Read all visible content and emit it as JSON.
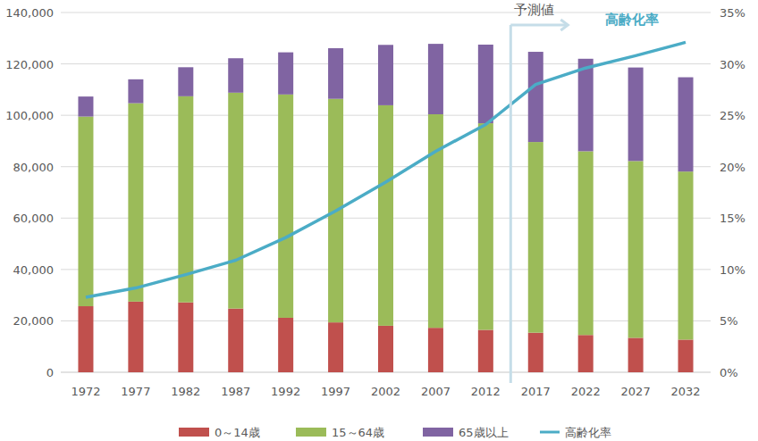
{
  "chart_data": {
    "type": "bar",
    "stacked": true,
    "grid": true,
    "legend": "bottom",
    "categories": [
      "1972",
      "1977",
      "1982",
      "1987",
      "1992",
      "1997",
      "2002",
      "2007",
      "2012",
      "2017",
      "2022",
      "2027",
      "2032"
    ],
    "series": [
      {
        "name": "0～14歳",
        "color": "#c0504d",
        "values": [
          25700,
          27500,
          27200,
          24800,
          21200,
          19400,
          18100,
          17300,
          16500,
          15400,
          14500,
          13400,
          12700
        ]
      },
      {
        "name": "15～64歳",
        "color": "#9bbb59",
        "values": [
          73800,
          77200,
          80200,
          84000,
          86900,
          87000,
          85800,
          83100,
          80400,
          74200,
          71500,
          68800,
          65400
        ]
      },
      {
        "name": "65歳以上",
        "color": "#8064a2",
        "values": [
          7800,
          9300,
          11300,
          13400,
          16400,
          19700,
          23500,
          27400,
          30600,
          35100,
          36000,
          36400,
          36700
        ]
      },
      {
        "name": "高齢化率",
        "type": "line",
        "axis": "y2",
        "color": "#4bacc6",
        "values": [
          7.3,
          8.2,
          9.5,
          10.9,
          13.1,
          15.7,
          18.5,
          21.5,
          24.1,
          28.0,
          29.6,
          30.8,
          32.1
        ]
      }
    ],
    "ylim": [
      0,
      140000
    ],
    "yticks": [
      0,
      {
        "value": 20000,
        "label": "20,000"
      },
      {
        "value": 40000,
        "label": "40,000"
      },
      {
        "value": 60000,
        "label": "60,000"
      },
      {
        "value": 80000,
        "label": "80,000"
      },
      {
        "value": 100000,
        "label": "100,000"
      },
      {
        "value": 120000,
        "label": "120,000"
      },
      {
        "value": 140000,
        "label": "140,000"
      }
    ],
    "y2lim": [
      0,
      35
    ],
    "y2ticks": [
      {
        "value": 0,
        "label": "0%"
      },
      {
        "value": 5,
        "label": "5%"
      },
      {
        "value": 10,
        "label": "10%"
      },
      {
        "value": 15,
        "label": "15%"
      },
      {
        "value": 20,
        "label": "20%"
      },
      {
        "value": 25,
        "label": "25%"
      },
      {
        "value": 30,
        "label": "30%"
      },
      {
        "value": 35,
        "label": "35%"
      }
    ],
    "annotations": [
      {
        "text": "予測値",
        "category": "2017"
      }
    ]
  }
}
